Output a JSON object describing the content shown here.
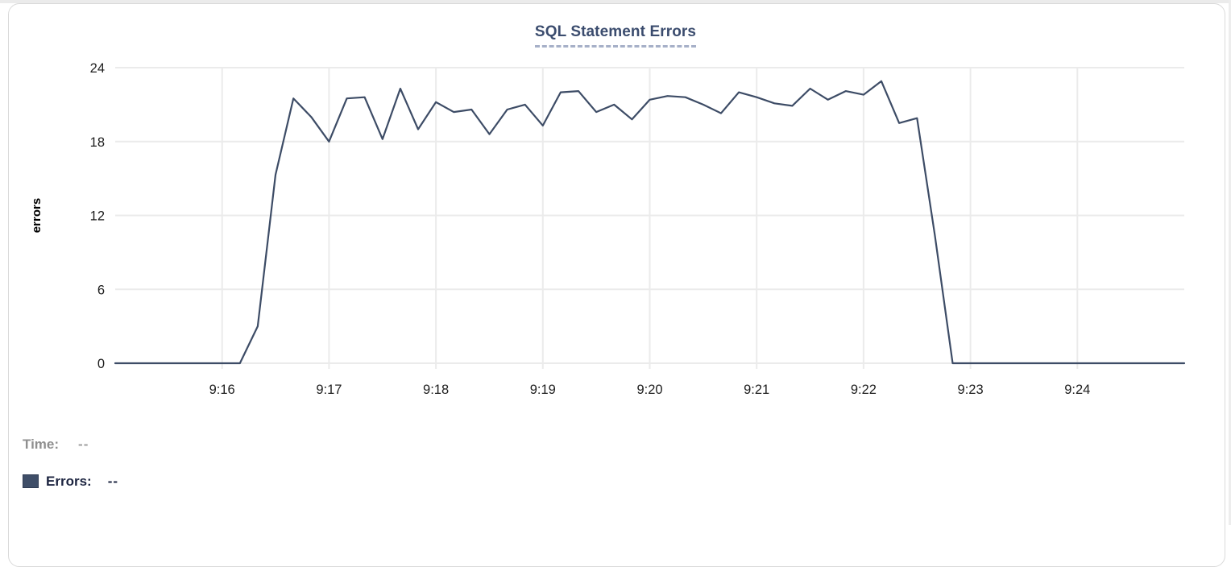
{
  "colors": {
    "line": "#3d4c66",
    "title_text": "#3b4c6e",
    "grid": "#ebebeb",
    "legend_swatch": "#3f4e68"
  },
  "readout": {
    "time_label": "Time:",
    "time_value": "--",
    "errors_label": "Errors:",
    "errors_value": "--"
  },
  "chart_data": {
    "type": "line",
    "title": "SQL Statement Errors",
    "xlabel": "",
    "ylabel": "errors",
    "ylim": [
      0,
      24
    ],
    "yticks": [
      0,
      6,
      12,
      18,
      24
    ],
    "x_tick_labels": [
      "9:16",
      "9:17",
      "9:18",
      "9:19",
      "9:20",
      "9:21",
      "9:22",
      "9:23",
      "9:24"
    ],
    "x_range": [
      "9:15:00",
      "9:25:00"
    ],
    "interval_seconds": 10,
    "grid": true,
    "legend_position": "bottom-left",
    "x": [
      "9:15:00",
      "9:15:10",
      "9:15:20",
      "9:15:30",
      "9:15:40",
      "9:15:50",
      "9:16:00",
      "9:16:10",
      "9:16:20",
      "9:16:30",
      "9:16:40",
      "9:16:50",
      "9:17:00",
      "9:17:10",
      "9:17:20",
      "9:17:30",
      "9:17:40",
      "9:17:50",
      "9:18:00",
      "9:18:10",
      "9:18:20",
      "9:18:30",
      "9:18:40",
      "9:18:50",
      "9:19:00",
      "9:19:10",
      "9:19:20",
      "9:19:30",
      "9:19:40",
      "9:19:50",
      "9:20:00",
      "9:20:10",
      "9:20:20",
      "9:20:30",
      "9:20:40",
      "9:20:50",
      "9:21:00",
      "9:21:10",
      "9:21:20",
      "9:21:30",
      "9:21:40",
      "9:21:50",
      "9:22:00",
      "9:22:10",
      "9:22:20",
      "9:22:30",
      "9:22:40",
      "9:22:50",
      "9:23:00",
      "9:23:10",
      "9:23:20",
      "9:23:30",
      "9:23:40",
      "9:23:50",
      "9:24:00",
      "9:24:10",
      "9:24:20",
      "9:24:30",
      "9:24:40",
      "9:24:50",
      "9:25:00"
    ],
    "series": [
      {
        "name": "Errors",
        "color": "#3d4c66",
        "values": [
          0,
          0,
          0,
          0,
          0,
          0,
          0,
          0,
          3,
          15.3,
          21.5,
          20,
          18,
          21.5,
          21.6,
          18.2,
          22.3,
          19,
          21.2,
          20.4,
          20.6,
          18.6,
          20.6,
          21,
          19.3,
          22,
          22.1,
          20.4,
          21,
          19.8,
          21.4,
          21.7,
          21.6,
          21,
          20.3,
          22,
          21.6,
          21.1,
          20.9,
          22.3,
          21.4,
          22.1,
          21.8,
          22.9,
          19.5,
          19.9,
          10.4,
          0,
          0,
          0,
          0,
          0,
          0,
          0,
          0,
          0,
          0,
          0,
          0,
          0,
          0
        ]
      }
    ]
  }
}
